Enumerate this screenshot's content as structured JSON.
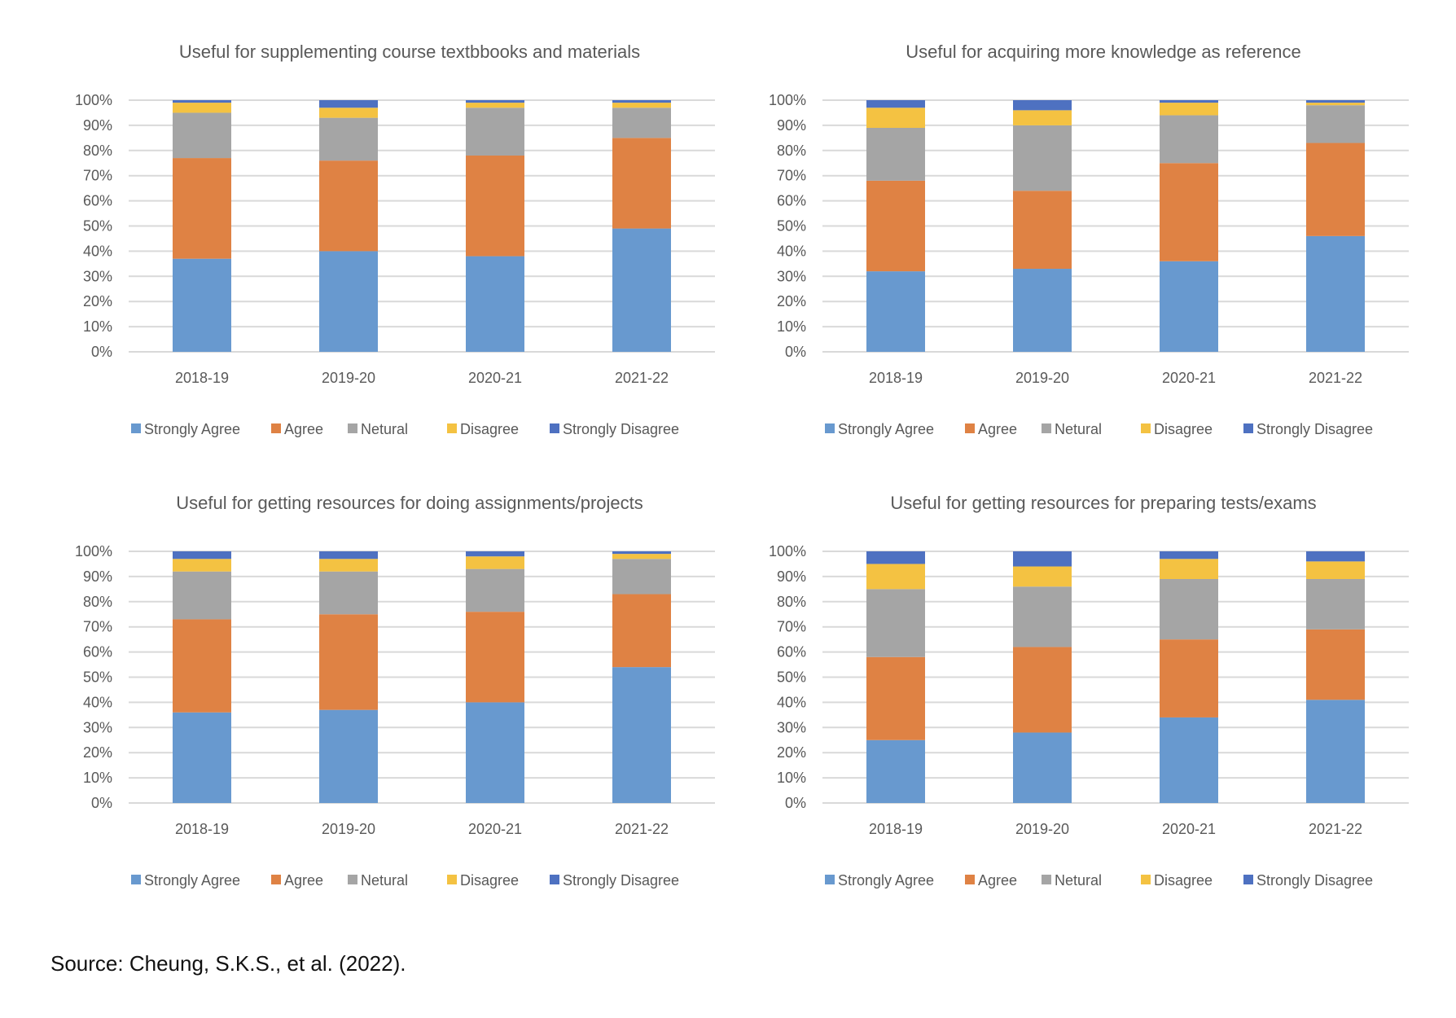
{
  "legend_labels": [
    "Strongly Agree",
    "Agree",
    "Netural",
    "Disagree",
    "Strongly Disagree"
  ],
  "colors": {
    "strongly_agree": "#6899CF",
    "agree": "#DF8244",
    "neutral": "#A5A5A5",
    "disagree": "#F4C242",
    "strongly_disagree": "#4E71C1",
    "grid": "#D9D9D9",
    "text": "#595959"
  },
  "source": "Source:   Cheung, S.K.S., et al. (2022).",
  "chart_data": [
    {
      "type": "bar",
      "stacked": true,
      "title": "Useful for supplementing course textbbooks and materials",
      "categories": [
        "2018-19",
        "2019-20",
        "2020-21",
        "2021-22"
      ],
      "series": [
        {
          "name": "Strongly Agree",
          "values": [
            37,
            40,
            38,
            49
          ]
        },
        {
          "name": "Agree",
          "values": [
            40,
            36,
            40,
            36
          ]
        },
        {
          "name": "Netural",
          "values": [
            18,
            17,
            19,
            12
          ]
        },
        {
          "name": "Disagree",
          "values": [
            4,
            4,
            2,
            2
          ]
        },
        {
          "name": "Strongly Disagree",
          "values": [
            1,
            3,
            1,
            1
          ]
        }
      ],
      "xlabel": "",
      "ylabel": "",
      "ylim": [
        0,
        100
      ],
      "yticks": [
        "0%",
        "10%",
        "20%",
        "30%",
        "40%",
        "50%",
        "60%",
        "70%",
        "80%",
        "90%",
        "100%"
      ],
      "grid": true,
      "legend": "bottom"
    },
    {
      "type": "bar",
      "stacked": true,
      "title": "Useful for acquiring more knowledge as reference",
      "categories": [
        "2018-19",
        "2019-20",
        "2020-21",
        "2021-22"
      ],
      "series": [
        {
          "name": "Strongly Agree",
          "values": [
            32,
            33,
            36,
            46
          ]
        },
        {
          "name": "Agree",
          "values": [
            36,
            31,
            39,
            37
          ]
        },
        {
          "name": "Netural",
          "values": [
            21,
            26,
            19,
            15
          ]
        },
        {
          "name": "Disagree",
          "values": [
            8,
            6,
            5,
            1
          ]
        },
        {
          "name": "Strongly Disagree",
          "values": [
            3,
            4,
            1,
            1
          ]
        }
      ],
      "xlabel": "",
      "ylabel": "",
      "ylim": [
        0,
        100
      ],
      "yticks": [
        "0%",
        "10%",
        "20%",
        "30%",
        "40%",
        "50%",
        "60%",
        "70%",
        "80%",
        "90%",
        "100%"
      ],
      "grid": true,
      "legend": "bottom"
    },
    {
      "type": "bar",
      "stacked": true,
      "title": "Useful for getting resources for doing assignments/projects",
      "categories": [
        "2018-19",
        "2019-20",
        "2020-21",
        "2021-22"
      ],
      "series": [
        {
          "name": "Strongly Agree",
          "values": [
            36,
            37,
            40,
            54
          ]
        },
        {
          "name": "Agree",
          "values": [
            37,
            38,
            36,
            29
          ]
        },
        {
          "name": "Netural",
          "values": [
            19,
            17,
            17,
            14
          ]
        },
        {
          "name": "Disagree",
          "values": [
            5,
            5,
            5,
            2
          ]
        },
        {
          "name": "Strongly Disagree",
          "values": [
            3,
            3,
            2,
            1
          ]
        }
      ],
      "xlabel": "",
      "ylabel": "",
      "ylim": [
        0,
        100
      ],
      "yticks": [
        "0%",
        "10%",
        "20%",
        "30%",
        "40%",
        "50%",
        "60%",
        "70%",
        "80%",
        "90%",
        "100%"
      ],
      "grid": true,
      "legend": "bottom"
    },
    {
      "type": "bar",
      "stacked": true,
      "title": "Useful for getting resources for preparing tests/exams",
      "categories": [
        "2018-19",
        "2019-20",
        "2020-21",
        "2021-22"
      ],
      "series": [
        {
          "name": "Strongly Agree",
          "values": [
            25,
            28,
            34,
            41
          ]
        },
        {
          "name": "Agree",
          "values": [
            33,
            34,
            31,
            28
          ]
        },
        {
          "name": "Netural",
          "values": [
            27,
            24,
            24,
            20
          ]
        },
        {
          "name": "Disagree",
          "values": [
            10,
            8,
            8,
            7
          ]
        },
        {
          "name": "Strongly Disagree",
          "values": [
            5,
            6,
            3,
            4
          ]
        }
      ],
      "xlabel": "",
      "ylabel": "",
      "ylim": [
        0,
        100
      ],
      "yticks": [
        "0%",
        "10%",
        "20%",
        "30%",
        "40%",
        "50%",
        "60%",
        "70%",
        "80%",
        "90%",
        "100%"
      ],
      "grid": true,
      "legend": "bottom"
    }
  ]
}
